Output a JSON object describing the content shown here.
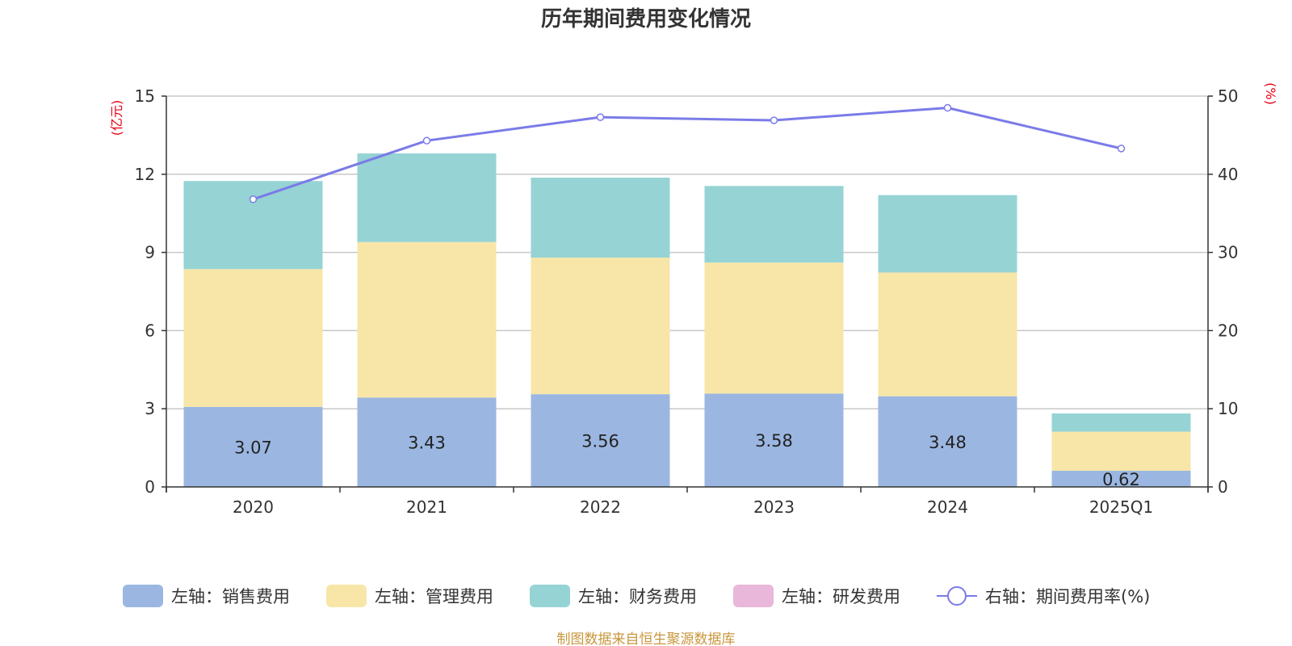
{
  "chart_data": {
    "type": "bar",
    "title": "历年期间费用变化情况",
    "categories": [
      "2020",
      "2021",
      "2022",
      "2023",
      "2024",
      "2025Q1"
    ],
    "left_axis": {
      "unit": "(亿元)",
      "ylim": [
        0,
        15
      ],
      "ticks": [
        "0",
        "3",
        "6",
        "9",
        "12",
        "15"
      ]
    },
    "right_axis": {
      "unit": "(%)",
      "ylim": [
        0,
        50
      ],
      "ticks": [
        "0",
        "10",
        "20",
        "30",
        "40",
        "50"
      ]
    },
    "series": [
      {
        "name": "左轴：销售费用",
        "type": "bar",
        "stack": true,
        "color": "#9bb7e1",
        "values": [
          3.07,
          3.43,
          3.56,
          3.58,
          3.48,
          0.62
        ],
        "labels": [
          "3.07",
          "3.43",
          "3.56",
          "3.58",
          "3.48",
          "0.62"
        ]
      },
      {
        "name": "左轴：管理费用",
        "type": "bar",
        "stack": true,
        "color": "#f7e6a8",
        "values": [
          5.29,
          5.97,
          5.24,
          5.03,
          4.75,
          1.5
        ]
      },
      {
        "name": "左轴：财务费用",
        "type": "bar",
        "stack": true,
        "color": "#96d3d4",
        "values": [
          3.38,
          3.4,
          3.07,
          2.94,
          2.97,
          0.7
        ]
      },
      {
        "name": "左轴：研发费用",
        "type": "bar",
        "stack": true,
        "color": "#e8b7d9",
        "values": [
          0,
          0,
          0,
          0,
          0,
          0
        ]
      },
      {
        "name": "右轴：期间费用率(%)",
        "type": "line",
        "color": "#7b7be8",
        "values": [
          36.8,
          44.3,
          47.3,
          46.9,
          48.5,
          43.3
        ]
      }
    ],
    "grid": true,
    "legend_position": "bottom",
    "source": "制图数据来自恒生聚源数据库"
  }
}
